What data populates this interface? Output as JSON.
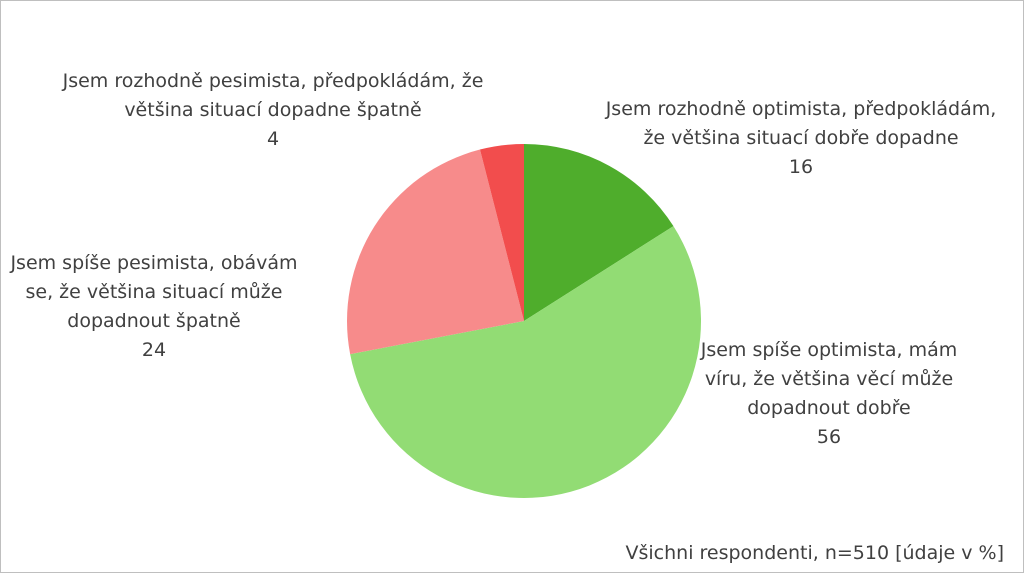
{
  "chart_data": {
    "type": "pie",
    "start_angle_deg": 0,
    "direction": "clockwise",
    "slices": [
      {
        "label": "Jsem rozhodně optimista, předpokládám, že většina situací dobře dopadne",
        "label_lines": [
          "Jsem rozhodně optimista, předpokládám,",
          "že většina situací dobře dopadne"
        ],
        "value": 16,
        "value_text": "16",
        "color": "#4fad2c"
      },
      {
        "label": "Jsem spíše optimista, mám víru, že většina věcí může dopadnout dobře",
        "label_lines": [
          "Jsem spíše optimista, mám",
          "víru, že většina věcí může",
          "dopadnout dobře"
        ],
        "value": 56,
        "value_text": "56",
        "color": "#92dc74"
      },
      {
        "label": "Jsem spíše pesimista, obávám se, že většina situací může dopadnout špatně",
        "label_lines": [
          "Jsem spíše pesimista, obávám",
          "se, že většina situací může",
          "dopadnout špatně"
        ],
        "value": 24,
        "value_text": "24",
        "color": "#f78b8b"
      },
      {
        "label": "Jsem rozhodně pesimista, předpokládám, že většina situací dopadne špatně",
        "label_lines": [
          "Jsem rozhodně pesimista, předpokládám, že",
          "většina situací dopadne špatně"
        ],
        "value": 4,
        "value_text": "4",
        "color": "#f24d4d"
      }
    ],
    "note": "Všichni respondenti, n=510 [údaje v %]"
  }
}
